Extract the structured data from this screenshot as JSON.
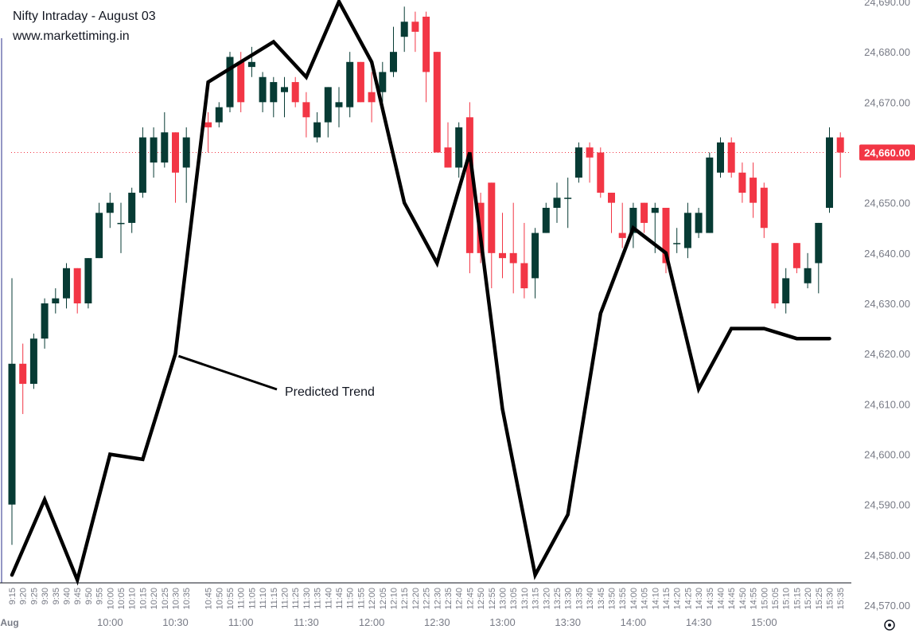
{
  "chart_data": {
    "type": "candlestick",
    "title": "Nifty Intraday - August 03",
    "subtitle": "www.markettiming.in",
    "annotation": "Predicted Trend",
    "date_label": "Aug",
    "price_label": "24,660.00",
    "last_price": 24660,
    "ylim": [
      24570,
      24690
    ],
    "yticks": [
      24570,
      24580,
      24590,
      24600,
      24610,
      24620,
      24630,
      24640,
      24650,
      24660,
      24670,
      24680,
      24690
    ],
    "ytick_labels": [
      "24,570.00",
      "24,580.00",
      "24,590.00",
      "24,600.00",
      "24,610.00",
      "24,620.00",
      "24,630.00",
      "24,640.00",
      "24,650.00",
      "24,660.00",
      "24,670.00",
      "24,680.00",
      "24,690.00"
    ],
    "major_times": [
      "10:00",
      "10:30",
      "11:00",
      "11:30",
      "12:00",
      "12:30",
      "13:00",
      "13:30",
      "14:00",
      "14:30",
      "15:00"
    ],
    "colors": {
      "up": "#073b34",
      "down": "#f23645",
      "trend": "#000000",
      "price_line": "#f23645",
      "axis_text": "#787b86",
      "label_text": "#131722"
    },
    "candles": [
      {
        "t": "9:15",
        "o": 24590,
        "h": 24635,
        "l": 24582,
        "c": 24618
      },
      {
        "t": "9:20",
        "o": 24618,
        "h": 24622,
        "l": 24608,
        "c": 24614
      },
      {
        "t": "9:25",
        "o": 24614,
        "h": 24624,
        "l": 24613,
        "c": 24623
      },
      {
        "t": "9:30",
        "o": 24623,
        "h": 24631,
        "l": 24621,
        "c": 24630
      },
      {
        "t": "9:35",
        "o": 24630,
        "h": 24633,
        "l": 24628,
        "c": 24631
      },
      {
        "t": "9:40",
        "o": 24631,
        "h": 24638,
        "l": 24629,
        "c": 24637
      },
      {
        "t": "9:45",
        "o": 24637,
        "h": 24637,
        "l": 24628,
        "c": 24630
      },
      {
        "t": "9:50",
        "o": 24630,
        "h": 24639,
        "l": 24629,
        "c": 24639
      },
      {
        "t": "9:55",
        "o": 24639,
        "h": 24650,
        "l": 24639,
        "c": 24648
      },
      {
        "t": "10:00",
        "o": 24648,
        "h": 24652,
        "l": 24645,
        "c": 24650
      },
      {
        "t": "10:05",
        "o": 24646,
        "h": 24650,
        "l": 24640,
        "c": 24646
      },
      {
        "t": "10:10",
        "o": 24646,
        "h": 24653,
        "l": 24644,
        "c": 24652
      },
      {
        "t": "10:15",
        "o": 24652,
        "h": 24665,
        "l": 24651,
        "c": 24663
      },
      {
        "t": "10:20",
        "o": 24658,
        "h": 24665,
        "l": 24655,
        "c": 24663
      },
      {
        "t": "10:25",
        "o": 24658,
        "h": 24668,
        "l": 24657,
        "c": 24664
      },
      {
        "t": "10:30",
        "o": 24664,
        "h": 24664,
        "l": 24650,
        "c": 24656
      },
      {
        "t": "10:35",
        "o": 24657,
        "h": 24665,
        "l": 24650,
        "c": 24663
      },
      {
        "t": "10:45",
        "o": 24666,
        "h": 24668,
        "l": 24660,
        "c": 24665
      },
      {
        "t": "10:50",
        "o": 24666,
        "h": 24670,
        "l": 24665,
        "c": 24669
      },
      {
        "t": "10:55",
        "o": 24669,
        "h": 24680,
        "l": 24668,
        "c": 24679
      },
      {
        "t": "11:00",
        "o": 24678,
        "h": 24680,
        "l": 24668,
        "c": 24670
      },
      {
        "t": "11:05",
        "o": 24677,
        "h": 24681,
        "l": 24675,
        "c": 24678
      },
      {
        "t": "11:10",
        "o": 24670,
        "h": 24676,
        "l": 24668,
        "c": 24675
      },
      {
        "t": "11:15",
        "o": 24670,
        "h": 24675,
        "l": 24667,
        "c": 24674
      },
      {
        "t": "11:20",
        "o": 24672,
        "h": 24675,
        "l": 24667,
        "c": 24673
      },
      {
        "t": "11:25",
        "o": 24674,
        "h": 24675,
        "l": 24669,
        "c": 24670
      },
      {
        "t": "11:30",
        "o": 24670,
        "h": 24672,
        "l": 24663,
        "c": 24667
      },
      {
        "t": "11:35",
        "o": 24663,
        "h": 24668,
        "l": 24662,
        "c": 24666
      },
      {
        "t": "11:40",
        "o": 24666,
        "h": 24673,
        "l": 24663,
        "c": 24673
      },
      {
        "t": "11:45",
        "o": 24669,
        "h": 24673,
        "l": 24665,
        "c": 24670
      },
      {
        "t": "11:50",
        "o": 24669,
        "h": 24680,
        "l": 24667,
        "c": 24678
      },
      {
        "t": "11:55",
        "o": 24678,
        "h": 24678,
        "l": 24670,
        "c": 24670
      },
      {
        "t": "12:00",
        "o": 24672,
        "h": 24676,
        "l": 24666,
        "c": 24670
      },
      {
        "t": "12:05",
        "o": 24672,
        "h": 24678,
        "l": 24670,
        "c": 24676
      },
      {
        "t": "12:10",
        "o": 24676,
        "h": 24685,
        "l": 24675,
        "c": 24680
      },
      {
        "t": "12:15",
        "o": 24683,
        "h": 24689,
        "l": 24680,
        "c": 24686
      },
      {
        "t": "12:20",
        "o": 24686,
        "h": 24688,
        "l": 24680,
        "c": 24684
      },
      {
        "t": "12:25",
        "o": 24687,
        "h": 24688,
        "l": 24670,
        "c": 24676
      },
      {
        "t": "12:30",
        "o": 24680,
        "h": 24680,
        "l": 24660,
        "c": 24660
      },
      {
        "t": "12:35",
        "o": 24661,
        "h": 24666,
        "l": 24657,
        "c": 24657
      },
      {
        "t": "12:40",
        "o": 24657,
        "h": 24666,
        "l": 24655,
        "c": 24665
      },
      {
        "t": "12:45",
        "o": 24667,
        "h": 24670,
        "l": 24636,
        "c": 24640
      },
      {
        "t": "12:50",
        "o": 24650,
        "h": 24652,
        "l": 24638,
        "c": 24640
      },
      {
        "t": "12:55",
        "o": 24654,
        "h": 24654,
        "l": 24633,
        "c": 24640
      },
      {
        "t": "13:00",
        "o": 24640,
        "h": 24648,
        "l": 24635,
        "c": 24639
      },
      {
        "t": "13:05",
        "o": 24640,
        "h": 24650,
        "l": 24632,
        "c": 24638
      },
      {
        "t": "13:10",
        "o": 24638,
        "h": 24646,
        "l": 24631,
        "c": 24633
      },
      {
        "t": "13:15",
        "o": 24635,
        "h": 24645,
        "l": 24631,
        "c": 24644
      },
      {
        "t": "13:20",
        "o": 24644,
        "h": 24650,
        "l": 24644,
        "c": 24649
      },
      {
        "t": "13:25",
        "o": 24649,
        "h": 24654,
        "l": 24646,
        "c": 24651
      },
      {
        "t": "13:30",
        "o": 24651,
        "h": 24655,
        "l": 24645,
        "c": 24651
      },
      {
        "t": "13:35",
        "o": 24655,
        "h": 24662,
        "l": 24654,
        "c": 24661
      },
      {
        "t": "13:40",
        "o": 24661,
        "h": 24662,
        "l": 24654,
        "c": 24659
      },
      {
        "t": "13:45",
        "o": 24660,
        "h": 24661,
        "l": 24651,
        "c": 24652
      },
      {
        "t": "13:50",
        "o": 24652,
        "h": 24652,
        "l": 24644,
        "c": 24650
      },
      {
        "t": "13:55",
        "o": 24644,
        "h": 24650,
        "l": 24641,
        "c": 24643
      },
      {
        "t": "14:00",
        "o": 24644,
        "h": 24650,
        "l": 24641,
        "c": 24649
      },
      {
        "t": "14:05",
        "o": 24650,
        "h": 24650,
        "l": 24644,
        "c": 24646
      },
      {
        "t": "14:10",
        "o": 24648,
        "h": 24650,
        "l": 24640,
        "c": 24649
      },
      {
        "t": "14:15",
        "o": 24649,
        "h": 24649,
        "l": 24636,
        "c": 24638
      },
      {
        "t": "14:20",
        "o": 24642,
        "h": 24645,
        "l": 24640,
        "c": 24642
      },
      {
        "t": "14:25",
        "o": 24641,
        "h": 24650,
        "l": 24639,
        "c": 24648
      },
      {
        "t": "14:30",
        "o": 24644,
        "h": 24649,
        "l": 24643,
        "c": 24648
      },
      {
        "t": "14:35",
        "o": 24644,
        "h": 24660,
        "l": 24644,
        "c": 24659
      },
      {
        "t": "14:40",
        "o": 24656,
        "h": 24663,
        "l": 24655,
        "c": 24662
      },
      {
        "t": "14:45",
        "o": 24662,
        "h": 24663,
        "l": 24655,
        "c": 24656
      },
      {
        "t": "14:50",
        "o": 24656,
        "h": 24658,
        "l": 24650,
        "c": 24652
      },
      {
        "t": "14:55",
        "o": 24655,
        "h": 24658,
        "l": 24647,
        "c": 24650
      },
      {
        "t": "15:00",
        "o": 24653,
        "h": 24654,
        "l": 24643,
        "c": 24645
      },
      {
        "t": "15:05",
        "o": 24642,
        "h": 24642,
        "l": 24629,
        "c": 24630
      },
      {
        "t": "15:10",
        "o": 24630,
        "h": 24637,
        "l": 24628,
        "c": 24635
      },
      {
        "t": "15:15",
        "o": 24642,
        "h": 24642,
        "l": 24636,
        "c": 24637
      },
      {
        "t": "15:20",
        "o": 24634,
        "h": 24640,
        "l": 24633,
        "c": 24637
      },
      {
        "t": "15:25",
        "o": 24638,
        "h": 24646,
        "l": 24632,
        "c": 24646
      },
      {
        "t": "15:30",
        "o": 24649,
        "h": 24665,
        "l": 24648,
        "c": 24663
      },
      {
        "t": "15:35",
        "o": 24663,
        "h": 24664,
        "l": 24655,
        "c": 24660
      }
    ],
    "trend": [
      {
        "t": "9:15",
        "y": 24576
      },
      {
        "t": "9:30",
        "y": 24591
      },
      {
        "t": "9:45",
        "y": 24575
      },
      {
        "t": "10:00",
        "y": 24600
      },
      {
        "t": "10:15",
        "y": 24599
      },
      {
        "t": "10:30",
        "y": 24620
      },
      {
        "t": "10:45",
        "y": 24674
      },
      {
        "t": "11:15",
        "y": 24682
      },
      {
        "t": "11:30",
        "y": 24675
      },
      {
        "t": "11:45",
        "y": 24690
      },
      {
        "t": "12:00",
        "y": 24678
      },
      {
        "t": "12:15",
        "y": 24650
      },
      {
        "t": "12:30",
        "y": 24638
      },
      {
        "t": "12:45",
        "y": 24660
      },
      {
        "t": "13:00",
        "y": 24609
      },
      {
        "t": "13:15",
        "y": 24576
      },
      {
        "t": "13:30",
        "y": 24588
      },
      {
        "t": "13:45",
        "y": 24628
      },
      {
        "t": "14:00",
        "y": 24645
      },
      {
        "t": "14:15",
        "y": 24640
      },
      {
        "t": "14:30",
        "y": 24613
      },
      {
        "t": "14:45",
        "y": 24625
      },
      {
        "t": "15:00",
        "y": 24625
      },
      {
        "t": "15:15",
        "y": 24623
      },
      {
        "t": "15:30",
        "y": 24623
      }
    ],
    "annotation_pointer": {
      "t": "10:30",
      "y": 24620
    }
  }
}
